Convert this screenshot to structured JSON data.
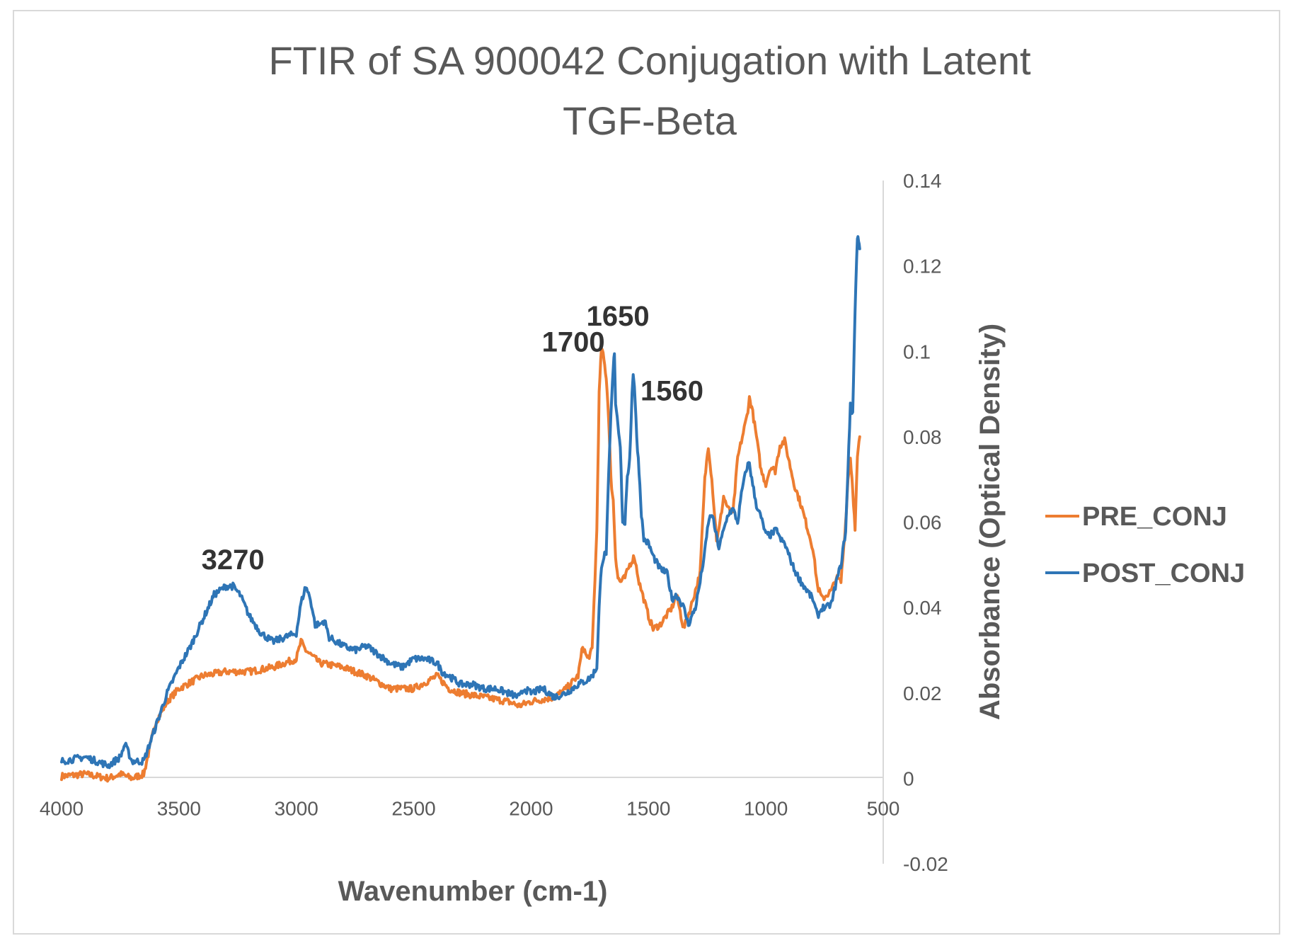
{
  "chart_data": {
    "type": "line",
    "title_lines": [
      "FTIR of SA 900042 Conjugation with Latent",
      "TGF-Beta"
    ],
    "xlabel": "Wavenumber (cm-1)",
    "ylabel": "Absorbance (Optical Density)",
    "xlim": [
      4000,
      500
    ],
    "ylim": [
      -0.02,
      0.14
    ],
    "x_ticks": [
      "4000",
      "3500",
      "3000",
      "2500",
      "2000",
      "1500",
      "1000",
      "500"
    ],
    "y_ticks": [
      "0.14",
      "0.12",
      "0.1",
      "0.08",
      "0.06",
      "0.04",
      "0.02",
      "0",
      "-0.02"
    ],
    "legend_position": "right",
    "series": [
      {
        "name": "PRE_CONJ",
        "color": "#ed7d31",
        "x": [
          4000,
          3900,
          3800,
          3750,
          3700,
          3650,
          3600,
          3550,
          3500,
          3400,
          3300,
          3200,
          3100,
          3050,
          3000,
          2980,
          2960,
          2900,
          2800,
          2700,
          2600,
          2500,
          2400,
          2350,
          2300,
          2200,
          2100,
          2050,
          2000,
          1900,
          1850,
          1800,
          1780,
          1760,
          1740,
          1720,
          1710,
          1700,
          1690,
          1680,
          1670,
          1660,
          1650,
          1640,
          1630,
          1620,
          1600,
          1580,
          1560,
          1540,
          1500,
          1480,
          1450,
          1400,
          1380,
          1350,
          1320,
          1300,
          1280,
          1260,
          1245,
          1230,
          1210,
          1200,
          1180,
          1160,
          1140,
          1120,
          1100,
          1080,
          1070,
          1060,
          1040,
          1020,
          1000,
          980,
          960,
          950,
          940,
          920,
          900,
          880,
          850,
          800,
          780,
          760,
          740,
          720,
          700,
          680,
          660,
          650,
          640,
          630,
          620,
          610,
          600
        ],
        "y": [
          0.0005,
          0.001,
          0.0,
          0.001,
          0.0,
          0.001,
          0.013,
          0.018,
          0.021,
          0.024,
          0.025,
          0.025,
          0.026,
          0.027,
          0.028,
          0.032,
          0.03,
          0.027,
          0.026,
          0.024,
          0.021,
          0.021,
          0.024,
          0.021,
          0.02,
          0.019,
          0.018,
          0.017,
          0.018,
          0.019,
          0.021,
          0.024,
          0.031,
          0.028,
          0.03,
          0.058,
          0.09,
          0.101,
          0.098,
          0.094,
          0.085,
          0.07,
          0.065,
          0.052,
          0.047,
          0.046,
          0.047,
          0.05,
          0.052,
          0.046,
          0.038,
          0.035,
          0.036,
          0.04,
          0.043,
          0.035,
          0.04,
          0.044,
          0.048,
          0.07,
          0.078,
          0.07,
          0.056,
          0.058,
          0.066,
          0.063,
          0.062,
          0.075,
          0.08,
          0.085,
          0.089,
          0.087,
          0.08,
          0.072,
          0.069,
          0.073,
          0.072,
          0.075,
          0.078,
          0.079,
          0.074,
          0.069,
          0.064,
          0.054,
          0.045,
          0.042,
          0.043,
          0.044,
          0.047,
          0.046,
          0.06,
          0.07,
          0.075,
          0.068,
          0.058,
          0.075,
          0.08
        ]
      },
      {
        "name": "POST_CONJ",
        "color": "#2e75b6",
        "x": [
          4000,
          3900,
          3850,
          3800,
          3750,
          3730,
          3700,
          3650,
          3600,
          3550,
          3500,
          3450,
          3400,
          3350,
          3300,
          3270,
          3240,
          3200,
          3150,
          3100,
          3050,
          3000,
          2980,
          2960,
          2940,
          2920,
          2900,
          2880,
          2860,
          2800,
          2750,
          2700,
          2650,
          2600,
          2550,
          2500,
          2450,
          2400,
          2380,
          2350,
          2300,
          2250,
          2200,
          2150,
          2100,
          2050,
          2030,
          2000,
          1950,
          1900,
          1850,
          1800,
          1760,
          1740,
          1720,
          1710,
          1700,
          1690,
          1680,
          1670,
          1660,
          1650,
          1645,
          1640,
          1630,
          1620,
          1610,
          1600,
          1590,
          1580,
          1570,
          1565,
          1560,
          1550,
          1540,
          1530,
          1520,
          1500,
          1480,
          1450,
          1420,
          1400,
          1380,
          1350,
          1330,
          1300,
          1280,
          1260,
          1245,
          1230,
          1215,
          1200,
          1180,
          1160,
          1140,
          1120,
          1100,
          1080,
          1070,
          1060,
          1040,
          1020,
          1000,
          980,
          960,
          950,
          940,
          920,
          900,
          880,
          850,
          800,
          780,
          760,
          740,
          720,
          700,
          680,
          660,
          650,
          640,
          630,
          620,
          610,
          605,
          600
        ],
        "y": [
          0.004,
          0.005,
          0.004,
          0.003,
          0.005,
          0.008,
          0.004,
          0.004,
          0.012,
          0.02,
          0.026,
          0.031,
          0.037,
          0.043,
          0.045,
          0.045,
          0.043,
          0.038,
          0.034,
          0.032,
          0.033,
          0.034,
          0.041,
          0.045,
          0.042,
          0.036,
          0.036,
          0.037,
          0.033,
          0.031,
          0.03,
          0.031,
          0.029,
          0.027,
          0.026,
          0.028,
          0.028,
          0.027,
          0.025,
          0.024,
          0.022,
          0.022,
          0.021,
          0.021,
          0.02,
          0.019,
          0.021,
          0.02,
          0.021,
          0.019,
          0.02,
          0.022,
          0.023,
          0.024,
          0.026,
          0.04,
          0.05,
          0.052,
          0.053,
          0.07,
          0.085,
          0.096,
          0.1,
          0.088,
          0.083,
          0.078,
          0.06,
          0.06,
          0.07,
          0.075,
          0.09,
          0.095,
          0.092,
          0.08,
          0.072,
          0.062,
          0.056,
          0.055,
          0.052,
          0.049,
          0.048,
          0.042,
          0.043,
          0.04,
          0.036,
          0.04,
          0.046,
          0.053,
          0.06,
          0.062,
          0.058,
          0.054,
          0.058,
          0.062,
          0.063,
          0.06,
          0.068,
          0.073,
          0.074,
          0.07,
          0.064,
          0.061,
          0.057,
          0.057,
          0.058,
          0.058,
          0.056,
          0.055,
          0.052,
          0.049,
          0.046,
          0.042,
          0.038,
          0.04,
          0.04,
          0.041,
          0.046,
          0.05,
          0.058,
          0.072,
          0.088,
          0.085,
          0.11,
          0.127,
          0.126,
          0.124
        ]
      }
    ],
    "annotations": [
      {
        "text": "3270",
        "x": 3270,
        "y": 0.049
      },
      {
        "text": "1700",
        "x": 1820,
        "y": 0.1
      },
      {
        "text": "1650",
        "x": 1630,
        "y": 0.106
      },
      {
        "text": "1560",
        "x": 1400,
        "y": 0.0885
      }
    ]
  }
}
